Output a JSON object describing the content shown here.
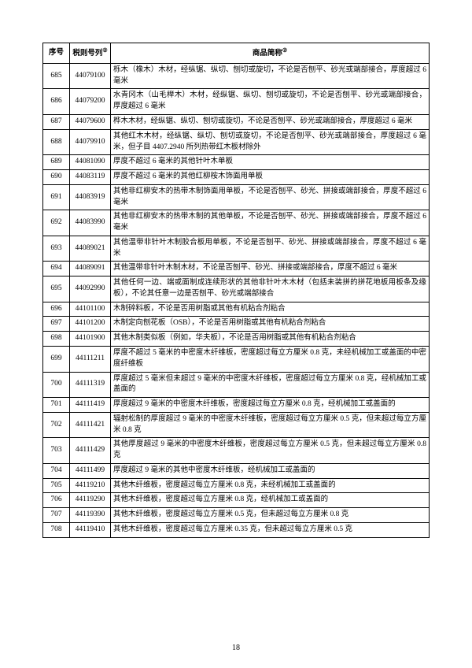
{
  "page_number": "18",
  "header": {
    "seq": "序号",
    "code": "税则号列",
    "desc": "商品简称",
    "note_marker": "②"
  },
  "colors": {
    "border": "#000000",
    "background": "#ffffff",
    "text": "#000000"
  },
  "font_size_pt": 9.5,
  "rows": [
    {
      "seq": "685",
      "code": "44079100",
      "desc": "栎木（橡木）木材，经纵锯、纵切、刨切或旋切，不论是否刨平、砂光或端部接合，厚度超过 6 毫米"
    },
    {
      "seq": "686",
      "code": "44079200",
      "desc": "水青冈木（山毛榉木）木材，经纵锯、纵切、刨切或旋切，不论是否刨平、砂光或端部接合，厚度超过 6 毫米"
    },
    {
      "seq": "687",
      "code": "44079600",
      "desc": "桦木木材，经纵锯、纵切、刨切或旋切，不论是否刨平、砂光或端部接合，厚度超过 6 毫米"
    },
    {
      "seq": "688",
      "code": "44079910",
      "desc": "其他红木木材，经纵锯、纵切、刨切或旋切，不论是否刨平、砂光或端部接合，厚度超过 6 毫米，但子目 4407.2940 所列热带红木板材除外"
    },
    {
      "seq": "689",
      "code": "44081090",
      "desc": "厚度不超过 6 毫米的其他针叶木单板"
    },
    {
      "seq": "690",
      "code": "44083119",
      "desc": "厚度不超过 6 毫米的其他红柳桉木饰面用单板"
    },
    {
      "seq": "691",
      "code": "44083919",
      "desc": "其他非红柳安木的热带木制饰面用单板，不论是否刨平、砂光、拼接或端部接合，厚度不超过 6 毫米"
    },
    {
      "seq": "692",
      "code": "44083990",
      "desc": "其他非红柳安木的热带木制的其他单板，不论是否刨平、砂光、拼接或端部接合，厚度不超过 6 毫米"
    },
    {
      "seq": "693",
      "code": "44089021",
      "desc": "其他温带非针叶木制胶合板用单板，不论是否刨平、砂光、拼接或端部接合，厚度不超过 6 毫米"
    },
    {
      "seq": "694",
      "code": "44089091",
      "desc": "其他温带非针叶木制木材，不论是否刨平、砂光、拼接或端部接合，厚度不超过 6 毫米"
    },
    {
      "seq": "695",
      "code": "44092990",
      "desc": "其他任何一边、端或面制成连续形状的其他非针叶木木材（包括未装拼的拼花地板用板条及缘板），不论其任意一边是否刨平、砂光或端部接合"
    },
    {
      "seq": "696",
      "code": "44101100",
      "desc": "木制碎料板，不论是否用树脂或其他有机粘合剂粘合"
    },
    {
      "seq": "697",
      "code": "44101200",
      "desc": "木制定向刨花板（OSB），不论是否用树脂或其他有机粘合剂粘合"
    },
    {
      "seq": "698",
      "code": "44101900",
      "desc": "其他木制类似板（例如，华夫板），不论是否用树脂或其他有机粘合剂粘合"
    },
    {
      "seq": "699",
      "code": "44111211",
      "desc": "厚度不超过 5 毫米的中密度木纤维板，密度超过每立方厘米 0.8 克，未经机械加工或盖面的中密度纤维板"
    },
    {
      "seq": "700",
      "code": "44111319",
      "desc": "厚度超过 5 毫米但未超过 9 毫米的中密度木纤维板，密度超过每立方厘米 0.8 克，经机械加工或盖面的"
    },
    {
      "seq": "701",
      "code": "44111419",
      "desc": "厚度超过 9 毫米的中密度木纤维板，密度超过每立方厘米 0.8 克，经机械加工或盖面的"
    },
    {
      "seq": "702",
      "code": "44111421",
      "desc": "辐射松制的厚度超过 9 毫米的中密度木纤维板，密度超过每立方厘米 0.5 克，但未超过每立方厘米 0.8 克"
    },
    {
      "seq": "703",
      "code": "44111429",
      "desc": "其他厚度超过 9 毫米的中密度木纤维板，密度超过每立方厘米 0.5 克，但未超过每立方厘米 0.8 克"
    },
    {
      "seq": "704",
      "code": "44111499",
      "desc": "厚度超过 9 毫米的其他中密度木纤维板，经机械加工或盖面的"
    },
    {
      "seq": "705",
      "code": "44119210",
      "desc": "其他木纤维板，密度超过每立方厘米 0.8 克，未经机械加工或盖面的"
    },
    {
      "seq": "706",
      "code": "44119290",
      "desc": "其他木纤维板，密度超过每立方厘米 0.8 克，经机械加工或盖面的"
    },
    {
      "seq": "707",
      "code": "44119390",
      "desc": "其他木纤维板，密度超过每立方厘米 0.5 克，但未超过每立方厘米 0.8 克"
    },
    {
      "seq": "708",
      "code": "44119410",
      "desc": "其他木纤维板，密度超过每立方厘米 0.35 克，但未超过每立方厘米 0.5 克"
    }
  ]
}
